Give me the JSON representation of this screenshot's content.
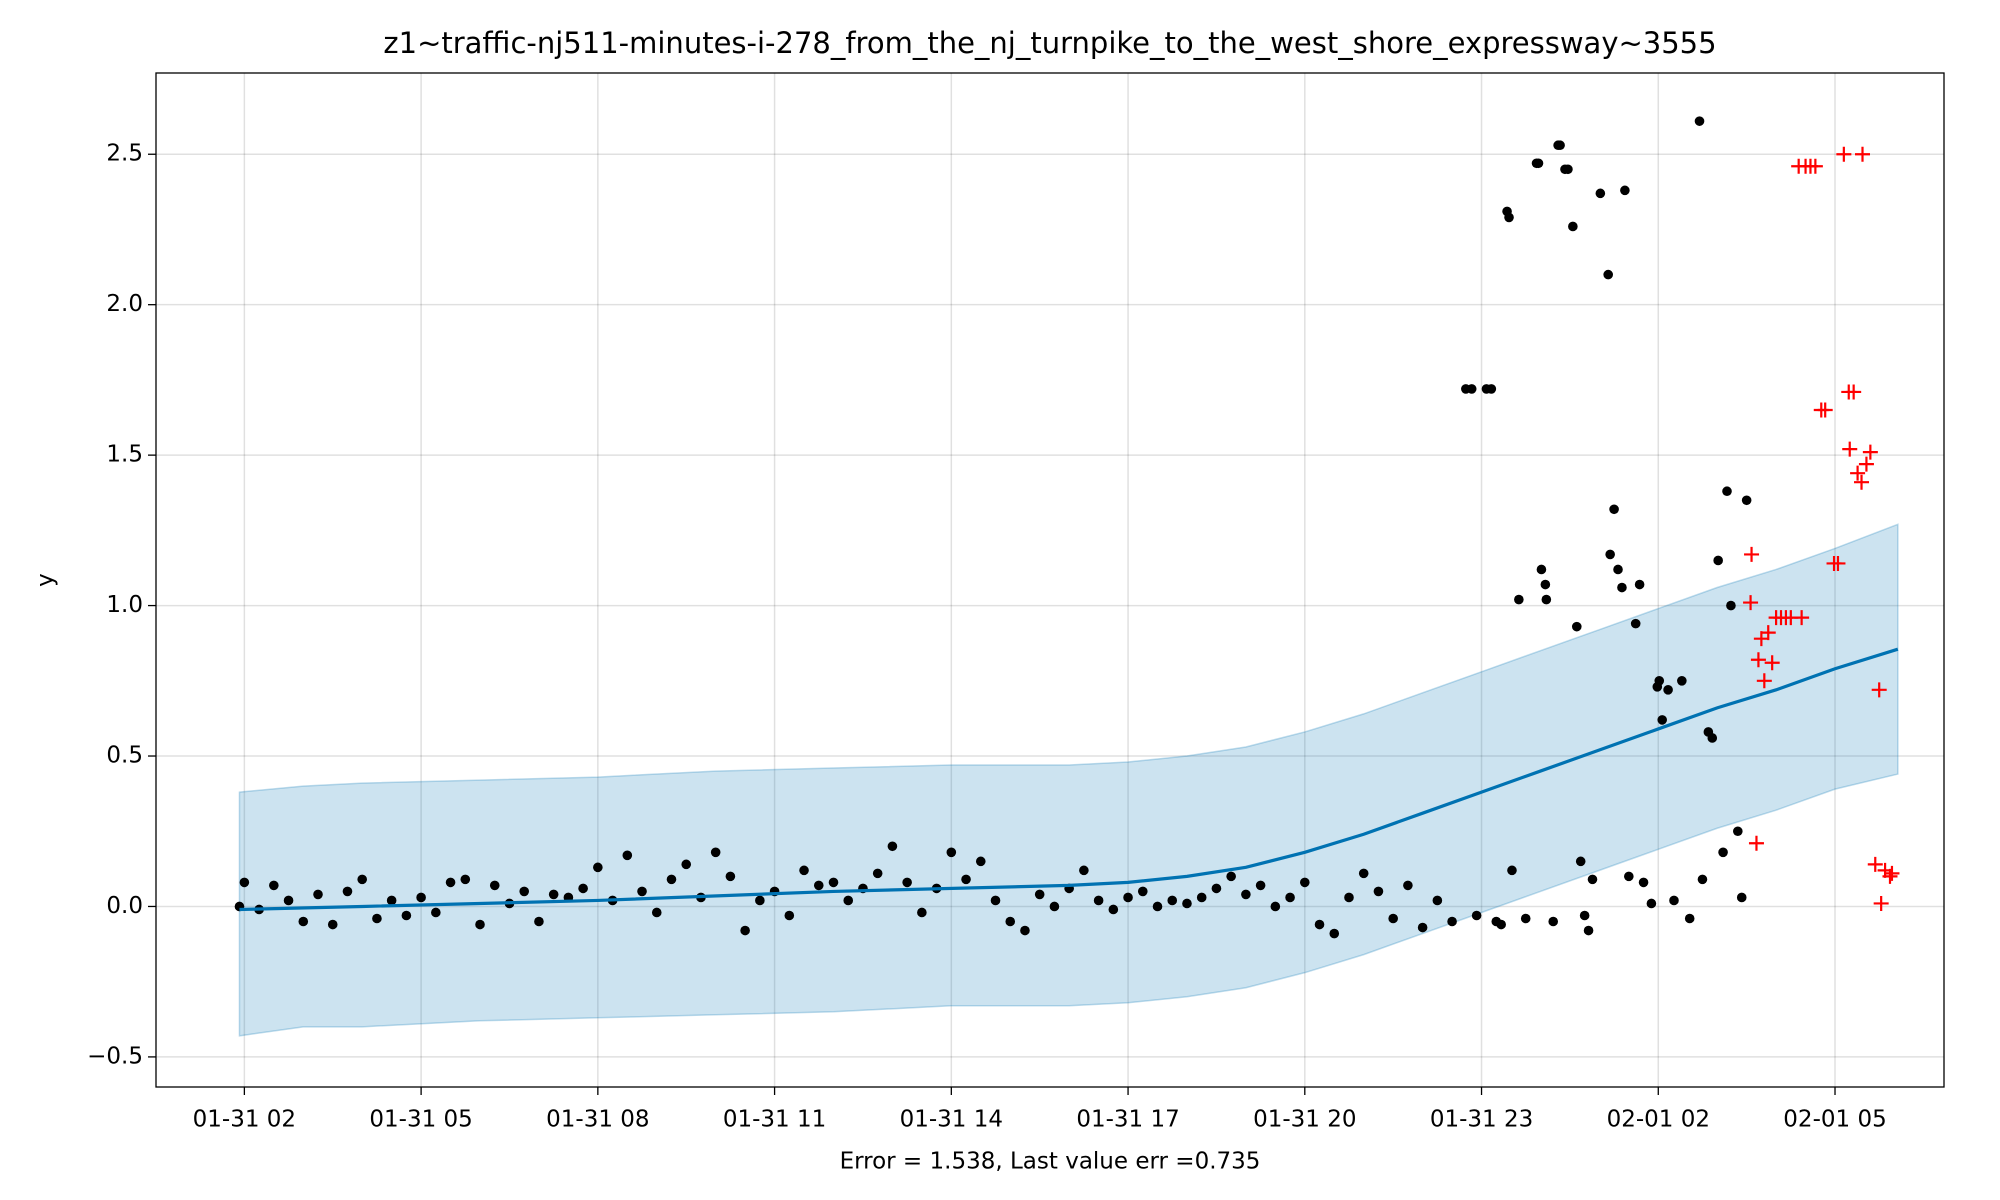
{
  "chart_data": {
    "type": "forecast",
    "title": "z1~traffic-nj511-minutes-i-278_from_the_nj_turnpike_to_the_west_shore_expressway~3555",
    "xlabel": "Error = 1.538, Last value err =0.735",
    "ylabel": "y",
    "xlim": [
      "01-31 00:30",
      "02-01 06:51"
    ],
    "ylim": [
      -0.6,
      2.77
    ],
    "xticks": [
      "01-31 02",
      "01-31 05",
      "01-31 08",
      "01-31 11",
      "01-31 14",
      "01-31 17",
      "01-31 20",
      "01-31 23",
      "02-01 02",
      "02-01 05"
    ],
    "yticks": [
      {
        "value": -0.5,
        "label": "−0.5"
      },
      {
        "value": 0,
        "label": "0.0"
      },
      0.5,
      {
        "value": 1,
        "label": "1.0"
      },
      1.5,
      {
        "value": 2,
        "label": "2.0"
      },
      2.5
    ],
    "grid": true,
    "band": {
      "color": "#0072B2",
      "x": [
        "01-31 01:55",
        "01-31 03:00",
        "01-31 04:00",
        "01-31 06:00",
        "01-31 08:00",
        "01-31 10:00",
        "01-31 12:00",
        "01-31 14:00",
        "01-31 16:00",
        "01-31 17:00",
        "01-31 18:00",
        "01-31 19:00",
        "01-31 20:00",
        "01-31 21:00",
        "01-31 22:00",
        "01-31 23:00",
        "02-01 00:00",
        "02-01 01:00",
        "02-01 02:00",
        "02-01 03:00",
        "02-01 04:00",
        "02-01 05:00",
        "02-01 06:04"
      ],
      "upper": [
        0.38,
        0.4,
        0.41,
        0.42,
        0.43,
        0.45,
        0.46,
        0.47,
        0.47,
        0.48,
        0.5,
        0.53,
        0.58,
        0.64,
        0.71,
        0.78,
        0.85,
        0.92,
        0.99,
        1.06,
        1.12,
        1.19,
        1.27
      ],
      "lower": [
        -0.43,
        -0.4,
        -0.4,
        -0.38,
        -0.37,
        -0.36,
        -0.35,
        -0.33,
        -0.33,
        -0.32,
        -0.3,
        -0.27,
        -0.22,
        -0.16,
        -0.09,
        -0.02,
        0.05,
        0.12,
        0.19,
        0.26,
        0.32,
        0.39,
        0.44
      ]
    },
    "forecast": {
      "color": "#0072B2",
      "x": [
        "01-31 01:55",
        "01-31 04:00",
        "01-31 08:00",
        "01-31 12:00",
        "01-31 16:00",
        "01-31 17:00",
        "01-31 18:00",
        "01-31 19:00",
        "01-31 20:00",
        "01-31 21:00",
        "01-31 22:00",
        "01-31 23:00",
        "02-01 00:00",
        "02-01 01:00",
        "02-01 02:00",
        "02-01 03:00",
        "02-01 04:00",
        "02-01 05:00",
        "02-01 06:04"
      ],
      "values": [
        -0.01,
        0.0,
        0.02,
        0.05,
        0.07,
        0.08,
        0.1,
        0.13,
        0.18,
        0.24,
        0.31,
        0.38,
        0.45,
        0.52,
        0.59,
        0.66,
        0.72,
        0.79,
        0.855
      ]
    },
    "observed": {
      "color": "#000000",
      "marker": "o",
      "x": [
        "01-31 01:55",
        "01-31 02:00",
        "01-31 02:15",
        "01-31 02:30",
        "01-31 02:45",
        "01-31 03:00",
        "01-31 03:15",
        "01-31 03:30",
        "01-31 03:45",
        "01-31 04:00",
        "01-31 04:15",
        "01-31 04:30",
        "01-31 04:45",
        "01-31 05:00",
        "01-31 05:15",
        "01-31 05:30",
        "01-31 05:45",
        "01-31 06:00",
        "01-31 06:15",
        "01-31 06:30",
        "01-31 06:45",
        "01-31 07:00",
        "01-31 07:15",
        "01-31 07:30",
        "01-31 07:45",
        "01-31 08:00",
        "01-31 08:15",
        "01-31 08:30",
        "01-31 08:45",
        "01-31 09:00",
        "01-31 09:15",
        "01-31 09:30",
        "01-31 09:45",
        "01-31 10:00",
        "01-31 10:15",
        "01-31 10:30",
        "01-31 10:45",
        "01-31 11:00",
        "01-31 11:15",
        "01-31 11:30",
        "01-31 11:45",
        "01-31 12:00",
        "01-31 12:15",
        "01-31 12:30",
        "01-31 12:45",
        "01-31 13:00",
        "01-31 13:15",
        "01-31 13:30",
        "01-31 13:45",
        "01-31 14:00",
        "01-31 14:15",
        "01-31 14:30",
        "01-31 14:45",
        "01-31 15:00",
        "01-31 15:15",
        "01-31 15:30",
        "01-31 15:45",
        "01-31 16:00",
        "01-31 16:15",
        "01-31 16:30",
        "01-31 16:45",
        "01-31 17:00",
        "01-31 17:15",
        "01-31 17:30",
        "01-31 17:45",
        "01-31 18:00",
        "01-31 18:15",
        "01-31 18:30",
        "01-31 18:45",
        "01-31 19:00",
        "01-31 19:15",
        "01-31 19:30",
        "01-31 19:45",
        "01-31 20:00",
        "01-31 20:15",
        "01-31 20:30",
        "01-31 20:45",
        "01-31 21:00",
        "01-31 21:15",
        "01-31 21:30",
        "01-31 21:45",
        "01-31 22:00",
        "01-31 22:15",
        "01-31 22:30",
        "01-31 22:44",
        "01-31 22:50",
        "01-31 22:55",
        "01-31 23:05",
        "01-31 23:10",
        "01-31 23:15",
        "01-31 23:20",
        "01-31 23:26",
        "01-31 23:28",
        "01-31 23:31",
        "01-31 23:38",
        "01-31 23:45",
        "01-31 23:56",
        "01-31 23:58",
        "02-01 00:01",
        "02-01 00:05",
        "02-01 00:06",
        "02-01 00:13",
        "02-01 00:18",
        "02-01 00:20",
        "02-01 00:25",
        "02-01 00:28",
        "02-01 00:33",
        "02-01 00:37",
        "02-01 00:41",
        "02-01 00:45",
        "02-01 00:49",
        "02-01 00:53",
        "02-01 01:01",
        "02-01 01:09",
        "02-01 01:11",
        "02-01 01:15",
        "02-01 01:19",
        "02-01 01:23",
        "02-01 01:26",
        "02-01 01:30",
        "02-01 01:37",
        "02-01 01:41",
        "02-01 01:45",
        "02-01 01:53",
        "02-01 01:59",
        "02-01 02:01",
        "02-01 02:04",
        "02-01 02:10",
        "02-01 02:16",
        "02-01 02:24",
        "02-01 02:32",
        "02-01 02:42",
        "02-01 02:45",
        "02-01 02:51",
        "02-01 02:55",
        "02-01 03:01",
        "02-01 03:06",
        "02-01 03:10",
        "02-01 03:14",
        "02-01 03:21",
        "02-01 03:25",
        "02-01 03:30"
      ],
      "values": [
        0.0,
        0.08,
        -0.01,
        0.07,
        0.02,
        -0.05,
        0.04,
        -0.06,
        0.05,
        0.09,
        -0.04,
        0.02,
        -0.03,
        0.03,
        -0.02,
        0.08,
        0.09,
        -0.06,
        0.07,
        0.01,
        0.05,
        -0.05,
        0.04,
        0.03,
        0.06,
        0.13,
        0.02,
        0.17,
        0.05,
        -0.02,
        0.09,
        0.14,
        0.03,
        0.18,
        0.1,
        -0.08,
        0.02,
        0.05,
        -0.03,
        0.12,
        0.07,
        0.08,
        0.02,
        0.06,
        0.11,
        0.2,
        0.08,
        -0.02,
        0.06,
        0.18,
        0.09,
        0.15,
        0.02,
        -0.05,
        -0.08,
        0.04,
        0.0,
        0.06,
        0.12,
        0.02,
        -0.01,
        0.03,
        0.05,
        0.0,
        0.02,
        0.01,
        0.03,
        0.06,
        0.1,
        0.04,
        0.07,
        0.0,
        0.03,
        0.08,
        -0.06,
        -0.09,
        0.03,
        0.11,
        0.05,
        -0.04,
        0.07,
        -0.07,
        0.02,
        -0.05,
        1.72,
        1.72,
        -0.03,
        1.72,
        1.72,
        -0.05,
        -0.06,
        2.31,
        2.29,
        0.12,
        1.02,
        -0.04,
        2.47,
        2.47,
        1.12,
        1.07,
        1.02,
        -0.05,
        2.53,
        2.53,
        2.45,
        2.45,
        2.26,
        0.93,
        0.15,
        -0.03,
        -0.08,
        0.09,
        2.37,
        2.1,
        1.17,
        1.32,
        1.12,
        1.06,
        2.38,
        0.1,
        0.94,
        1.07,
        0.08,
        0.01,
        0.73,
        0.75,
        0.62,
        0.72,
        0.02,
        0.75,
        -0.04,
        2.61,
        0.09,
        0.58,
        0.56,
        1.15,
        0.18,
        1.38,
        1.0,
        0.25,
        0.03,
        1.35
      ]
    },
    "future": {
      "color": "#ff0000",
      "marker": "+",
      "x": [
        "02-01 03:34",
        "02-01 03:35",
        "02-01 03:40",
        "02-01 03:42",
        "02-01 03:45",
        "02-01 03:48",
        "02-01 03:52",
        "02-01 03:56",
        "02-01 04:00",
        "02-01 04:05",
        "02-01 04:10",
        "02-01 04:15",
        "02-01 04:23",
        "02-01 04:26",
        "02-01 04:30",
        "02-01 04:35",
        "02-01 04:40",
        "02-01 04:46",
        "02-01 04:50",
        "02-01 04:59",
        "02-01 05:03",
        "02-01 05:09",
        "02-01 05:14",
        "02-01 05:15",
        "02-01 05:19",
        "02-01 05:23",
        "02-01 05:27",
        "02-01 05:28",
        "02-01 05:32",
        "02-01 05:36",
        "02-01 05:41",
        "02-01 05:45",
        "02-01 05:47",
        "02-01 05:51",
        "02-01 05:56",
        "02-01 05:58"
      ],
      "values": [
        1.01,
        1.17,
        0.21,
        0.82,
        0.89,
        0.75,
        0.91,
        0.81,
        0.96,
        0.96,
        0.96,
        0.96,
        2.46,
        0.96,
        2.46,
        2.46,
        2.46,
        1.65,
        1.65,
        1.14,
        1.14,
        2.5,
        1.71,
        1.52,
        1.71,
        1.44,
        1.41,
        2.5,
        1.47,
        1.51,
        0.14,
        0.72,
        0.01,
        0.12,
        0.1,
        0.11
      ]
    }
  }
}
